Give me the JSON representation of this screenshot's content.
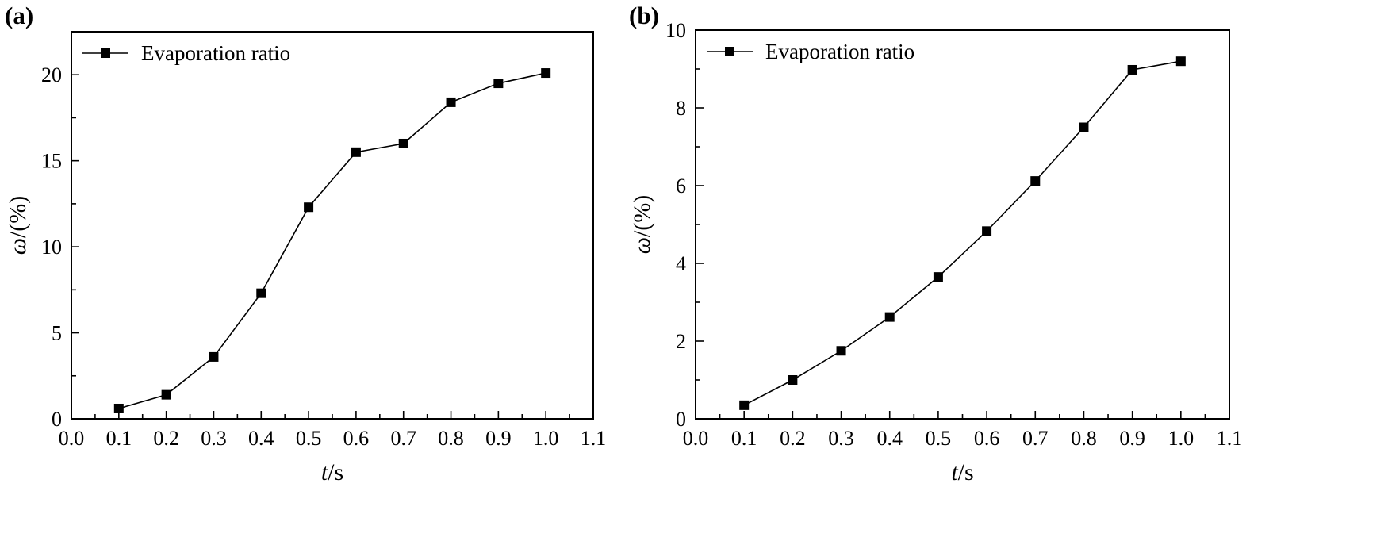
{
  "chart_data": [
    {
      "type": "line",
      "panel_label": "(a)",
      "x": [
        0.1,
        0.2,
        0.3,
        0.4,
        0.5,
        0.6,
        0.7,
        0.8,
        0.9,
        1.0
      ],
      "series": [
        {
          "name": "Evaporation ratio",
          "values": [
            0.6,
            1.4,
            3.6,
            7.3,
            12.3,
            15.5,
            16.0,
            18.4,
            19.5,
            20.1
          ]
        }
      ],
      "xlabel_italic": "t",
      "xlabel_rest": "/s",
      "ylabel_italic": "ω",
      "ylabel_rest": "/(%)",
      "xlim": [
        0.0,
        1.1
      ],
      "ylim": [
        0,
        22.5
      ],
      "xticks": [
        "0.0",
        "0.1",
        "0.2",
        "0.3",
        "0.4",
        "0.5",
        "0.6",
        "0.7",
        "0.8",
        "0.9",
        "1.0",
        "1.1"
      ],
      "yticks": [
        "0",
        "5",
        "10",
        "15",
        "20"
      ],
      "ytick_values": [
        0,
        5,
        10,
        15,
        20
      ],
      "y_minor_step": 2.5,
      "legend_position": "top-left",
      "grid": false
    },
    {
      "type": "line",
      "panel_label": "(b)",
      "x": [
        0.1,
        0.2,
        0.3,
        0.4,
        0.5,
        0.6,
        0.7,
        0.8,
        0.9,
        1.0
      ],
      "series": [
        {
          "name": "Evaporation ratio",
          "values": [
            0.35,
            1.0,
            1.75,
            2.62,
            3.65,
            4.83,
            6.12,
            7.5,
            8.98,
            9.2
          ]
        }
      ],
      "xlabel_italic": "t",
      "xlabel_rest": "/s",
      "ylabel_italic": "ω",
      "ylabel_rest": "/(%)",
      "xlim": [
        0.0,
        1.1
      ],
      "ylim": [
        0,
        10
      ],
      "xticks": [
        "0.0",
        "0.1",
        "0.2",
        "0.3",
        "0.4",
        "0.5",
        "0.6",
        "0.7",
        "0.8",
        "0.9",
        "1.0",
        "1.1"
      ],
      "yticks": [
        "0",
        "2",
        "4",
        "6",
        "8",
        "10"
      ],
      "ytick_values": [
        0,
        2,
        4,
        6,
        8,
        10
      ],
      "y_minor_step": 1,
      "legend_position": "top-left",
      "grid": false
    }
  ],
  "colors": {
    "line": "#000000",
    "marker": "#000000",
    "background": "#ffffff"
  }
}
